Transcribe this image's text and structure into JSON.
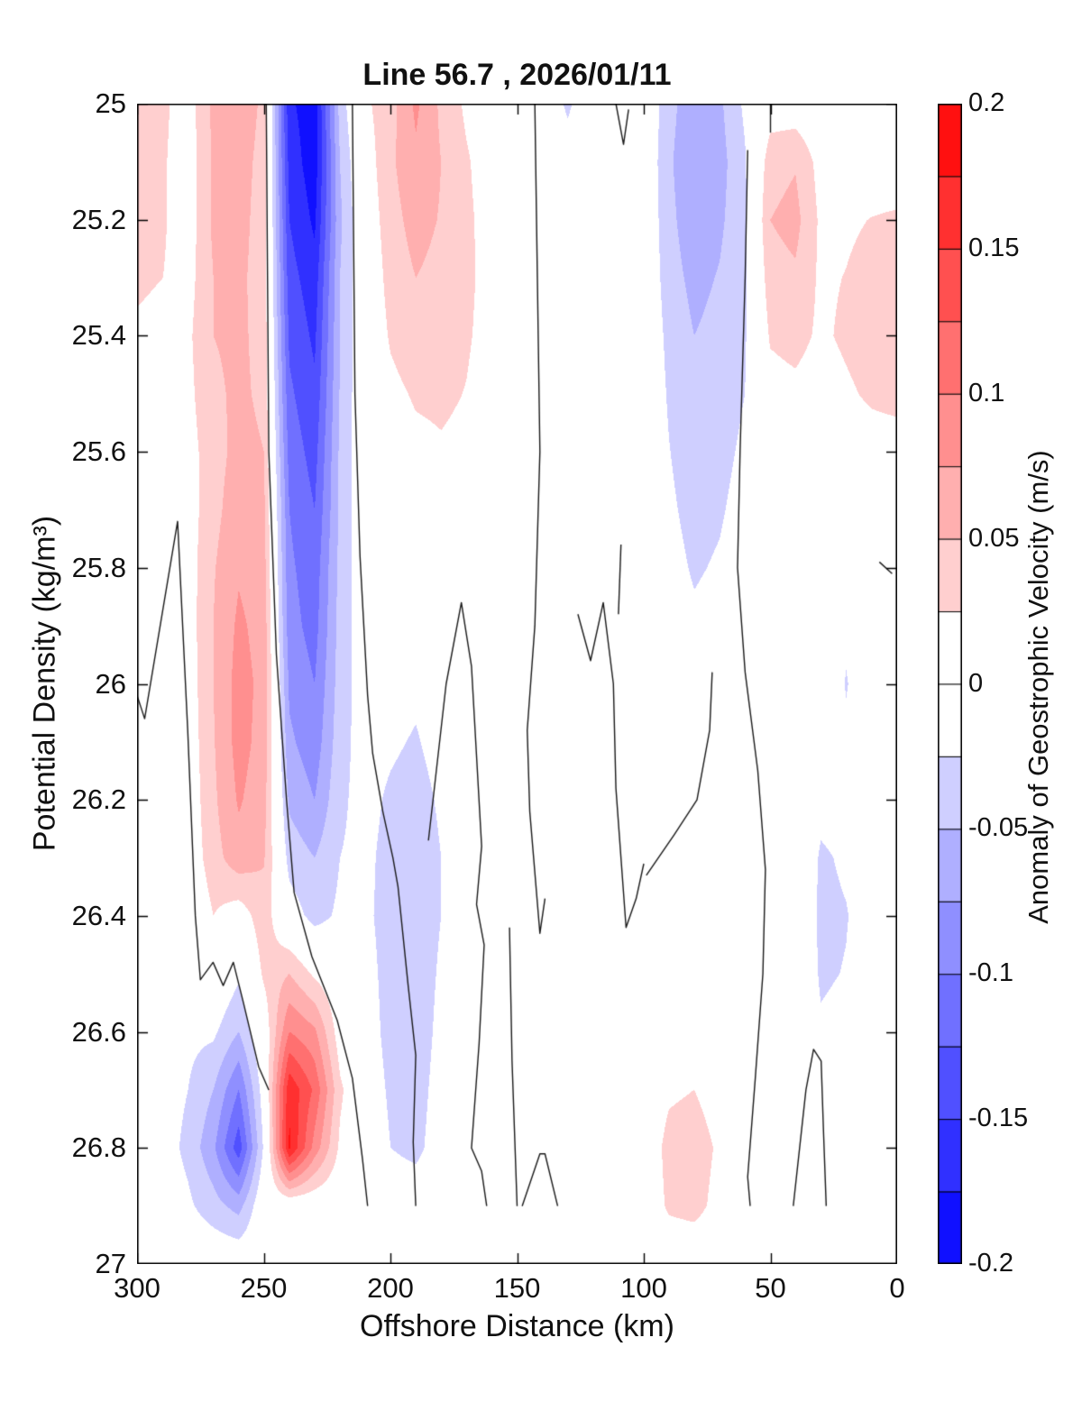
{
  "title": "Line 56.7 , 2026/01/11",
  "figure": {
    "background_color": "#FFFFFF",
    "frame_color": "#000000",
    "contour_line_color": "#1A1A1A",
    "text_color": "#111111"
  },
  "axes": {
    "x": {
      "label": "Offshore Distance (km)",
      "min": 0,
      "max": 300,
      "reversed": true,
      "ticks": [
        {
          "value": 300,
          "label": "300"
        },
        {
          "value": 250,
          "label": "250"
        },
        {
          "value": 200,
          "label": "200"
        },
        {
          "value": 150,
          "label": "150"
        },
        {
          "value": 100,
          "label": "100"
        },
        {
          "value": 50,
          "label": "50"
        },
        {
          "value": 0,
          "label": "0"
        }
      ]
    },
    "y": {
      "label": "Potential Density (kg/m³)",
      "min": 25,
      "max": 27,
      "increases_downward": true,
      "ticks": [
        {
          "value": 25,
          "label": "25"
        },
        {
          "value": 25.2,
          "label": "25.2"
        },
        {
          "value": 25.4,
          "label": "25.4"
        },
        {
          "value": 25.6,
          "label": "25.6"
        },
        {
          "value": 25.8,
          "label": "25.8"
        },
        {
          "value": 26,
          "label": "26"
        },
        {
          "value": 26.2,
          "label": "26.2"
        },
        {
          "value": 26.4,
          "label": "26.4"
        },
        {
          "value": 26.6,
          "label": "26.6"
        },
        {
          "value": 26.8,
          "label": "26.8"
        },
        {
          "value": 27,
          "label": "27"
        }
      ]
    }
  },
  "colorbar": {
    "label": "Anomaly of Geostrophic Velocity (m/s)",
    "min": -0.2,
    "max": 0.2,
    "n_bins": 16,
    "bin_colors": [
      "#1010FF",
      "#3030FF",
      "#5050FF",
      "#7070FF",
      "#8F8FFF",
      "#AFAFFF",
      "#CFCFFF",
      "#FFFFFF",
      "#FFFFFF",
      "#FFCFCF",
      "#FFAFAF",
      "#FF8F8F",
      "#FF7070",
      "#FF5050",
      "#FF3030",
      "#FF1010"
    ],
    "ticks": [
      {
        "value": 0.2,
        "label": "0.2"
      },
      {
        "value": 0.15,
        "label": "0.15"
      },
      {
        "value": 0.1,
        "label": "0.1"
      },
      {
        "value": 0.05,
        "label": "0.05"
      },
      {
        "value": 0,
        "label": "0"
      },
      {
        "value": -0.05,
        "label": "-0.05"
      },
      {
        "value": -0.1,
        "label": "-0.1"
      },
      {
        "value": -0.15,
        "label": "-0.15"
      },
      {
        "value": -0.2,
        "label": "-0.2"
      }
    ]
  },
  "chart_data": {
    "type": "filled_contour",
    "title": "Line 56.7 , 2026/01/11",
    "xlabel": "Offshore Distance (km)",
    "ylabel": "Potential Density (kg/m³)",
    "zlabel": "Anomaly of Geostrophic Velocity (m/s)",
    "x_km": [
      300,
      290,
      280,
      270,
      260,
      250,
      240,
      230,
      220,
      210,
      200,
      190,
      180,
      170,
      160,
      150,
      140,
      130,
      120,
      110,
      100,
      90,
      80,
      70,
      60,
      50,
      40,
      30,
      20,
      10,
      0
    ],
    "sigma": [
      25.0,
      25.1,
      25.2,
      25.3,
      25.4,
      25.5,
      25.6,
      25.7,
      25.8,
      25.9,
      26.0,
      26.1,
      26.2,
      26.3,
      26.4,
      26.5,
      26.6,
      26.7,
      26.8,
      26.9,
      27.0
    ],
    "contour_interval": 0.025,
    "values": [
      [
        0.04,
        0.03,
        0.012,
        0.055,
        0.065,
        0.045,
        -0.17,
        -0.19,
        -0.04,
        0.02,
        0.04,
        0.08,
        0.045,
        0.02,
        0.006,
        0,
        0,
        -0.03,
        0,
        0,
        0,
        -0.04,
        -0.07,
        -0.055,
        -0.02,
        0.01,
        0.008,
        0,
        0,
        0,
        0
      ],
      [
        0.04,
        0.028,
        0.01,
        0.055,
        0.06,
        0.042,
        -0.16,
        -0.19,
        -0.05,
        0.01,
        0.045,
        0.07,
        0.05,
        0.028,
        0.01,
        0,
        0,
        -0.01,
        0,
        0,
        0,
        -0.045,
        -0.075,
        -0.06,
        -0.028,
        0.04,
        0.048,
        0.015,
        0.01,
        0.006,
        0.002
      ],
      [
        0.04,
        0.028,
        0.01,
        0.055,
        0.058,
        0.04,
        -0.15,
        -0.18,
        -0.055,
        0.005,
        0.04,
        0.06,
        0.048,
        0.03,
        0.014,
        0,
        0,
        0,
        0,
        0,
        0,
        -0.042,
        -0.068,
        -0.055,
        -0.03,
        0.05,
        0.058,
        0.02,
        0.02,
        0.026,
        0.03
      ],
      [
        0.03,
        0.025,
        0.015,
        0.05,
        0.055,
        0.04,
        -0.14,
        -0.165,
        -0.05,
        0,
        0.035,
        0.05,
        0.042,
        0.03,
        0.016,
        0,
        0,
        0,
        0,
        0,
        0,
        -0.038,
        -0.058,
        -0.048,
        -0.03,
        0.04,
        0.046,
        0.02,
        0.026,
        0.036,
        0.042
      ],
      [
        0.02,
        0.015,
        0.02,
        0.05,
        0.055,
        0.042,
        -0.13,
        -0.155,
        -0.05,
        0,
        0.028,
        0.04,
        0.036,
        0.028,
        0.015,
        0,
        0,
        0,
        0,
        0,
        0,
        -0.032,
        -0.05,
        -0.042,
        -0.028,
        0.028,
        0.034,
        0.02,
        0.03,
        0.04,
        0.046
      ],
      [
        0.01,
        0.008,
        0.018,
        0.045,
        0.055,
        0.045,
        -0.12,
        -0.145,
        -0.048,
        0,
        0.018,
        0.028,
        0.03,
        0.024,
        0.012,
        0,
        0,
        0,
        0,
        0,
        0,
        -0.028,
        -0.045,
        -0.038,
        -0.025,
        0.014,
        0.018,
        0.01,
        0.02,
        0.03,
        0.036
      ],
      [
        0.008,
        0.008,
        0.014,
        0.04,
        0.058,
        0.05,
        -0.11,
        -0.135,
        -0.045,
        0,
        0.01,
        0.018,
        0.022,
        0.018,
        0.008,
        0,
        0,
        0,
        0,
        0,
        0,
        -0.024,
        -0.04,
        -0.033,
        -0.02,
        0.004,
        0.004,
        0,
        0.008,
        0.01,
        0.008
      ],
      [
        0.008,
        0.01,
        0.012,
        0.042,
        0.065,
        0.055,
        -0.1,
        -0.125,
        -0.045,
        -0.002,
        0.004,
        0.008,
        0.012,
        0.01,
        0.004,
        0,
        0,
        0,
        0,
        0,
        0,
        -0.02,
        -0.034,
        -0.028,
        -0.015,
        0.014,
        0.008,
        0,
        -0.004,
        -0.002,
        0
      ],
      [
        0.008,
        0.012,
        0.012,
        0.048,
        0.072,
        0.06,
        -0.095,
        -0.115,
        -0.042,
        -0.005,
        0,
        0,
        0.004,
        0.004,
        0,
        0,
        0,
        0,
        0,
        0,
        0,
        -0.015,
        -0.028,
        -0.022,
        -0.01,
        0.02,
        0.012,
        0,
        -0.012,
        -0.006,
        -0.002
      ],
      [
        0.006,
        0.012,
        0.012,
        0.05,
        0.08,
        0.065,
        -0.09,
        -0.11,
        -0.04,
        -0.008,
        -0.005,
        -0.008,
        -0.002,
        0,
        0,
        0,
        0,
        0,
        0,
        0,
        0,
        -0.01,
        -0.02,
        -0.015,
        -0.006,
        0.01,
        0.006,
        -0.005,
        -0.022,
        -0.012,
        -0.006
      ],
      [
        0.002,
        0.005,
        0.01,
        0.05,
        0.085,
        0.068,
        -0.08,
        -0.1,
        -0.038,
        -0.01,
        -0.012,
        -0.018,
        -0.006,
        -0.002,
        0,
        0,
        0,
        0,
        0,
        0,
        0,
        -0.005,
        -0.012,
        -0.008,
        -0.002,
        0,
        0,
        -0.008,
        -0.026,
        -0.014,
        -0.008
      ],
      [
        -0.004,
        -0.003,
        0.008,
        0.048,
        0.085,
        0.065,
        -0.07,
        -0.09,
        -0.035,
        -0.012,
        -0.02,
        -0.028,
        -0.012,
        -0.004,
        0,
        0,
        0,
        0,
        0,
        0,
        0,
        0,
        -0.005,
        -0.002,
        0,
        0,
        0,
        -0.012,
        -0.022,
        -0.01,
        -0.006
      ],
      [
        -0.005,
        -0.004,
        0.006,
        0.045,
        0.078,
        0.06,
        -0.055,
        -0.075,
        -0.03,
        -0.015,
        -0.03,
        -0.038,
        -0.02,
        -0.006,
        0,
        0,
        0,
        0,
        0,
        0,
        0,
        0,
        0,
        0,
        0,
        0,
        0,
        -0.018,
        -0.016,
        -0.008,
        -0.004
      ],
      [
        -0.005,
        -0.005,
        0.004,
        0.04,
        0.065,
        0.052,
        -0.035,
        -0.05,
        -0.025,
        -0.018,
        -0.035,
        -0.045,
        -0.025,
        -0.008,
        0,
        0,
        0,
        0,
        0,
        0,
        0,
        0,
        0,
        0,
        0,
        0,
        0,
        -0.028,
        -0.022,
        -0.012,
        -0.008
      ],
      [
        -0.008,
        -0.006,
        -0.005,
        0.025,
        0.01,
        0.04,
        -0.01,
        -0.035,
        -0.02,
        -0.02,
        -0.035,
        -0.045,
        -0.025,
        -0.008,
        0,
        0,
        0,
        0,
        0,
        0,
        0,
        0,
        0,
        0,
        0,
        0,
        0,
        -0.03,
        -0.026,
        -0.016,
        -0.012
      ],
      [
        -0.01,
        -0.01,
        -0.012,
        0.005,
        -0.02,
        0.03,
        0.05,
        0.02,
        0,
        -0.015,
        -0.035,
        -0.045,
        -0.02,
        -0.005,
        0,
        0,
        0,
        0,
        0,
        0,
        0,
        0,
        0,
        0,
        0,
        0,
        0,
        -0.028,
        -0.024,
        -0.012,
        -0.008
      ],
      [
        -0.01,
        -0.012,
        -0.018,
        -0.02,
        -0.05,
        0.005,
        0.1,
        0.08,
        0.01,
        -0.01,
        -0.035,
        -0.045,
        -0.015,
        -0.003,
        0,
        0,
        0,
        0,
        0,
        0,
        0,
        0.005,
        0.005,
        0,
        0,
        0,
        -0.008,
        -0.022,
        -0.018,
        -0.008,
        -0.004
      ],
      [
        -0.01,
        -0.012,
        -0.025,
        -0.05,
        -0.1,
        -0.01,
        0.17,
        0.12,
        0.03,
        -0.005,
        -0.03,
        -0.04,
        -0.01,
        0,
        0,
        0,
        0,
        0,
        0,
        0,
        0,
        0.02,
        0.025,
        0.01,
        0,
        0,
        -0.012,
        -0.012,
        -0.01,
        -0.004,
        0
      ],
      [
        -0.01,
        -0.012,
        -0.032,
        -0.07,
        -0.14,
        -0.02,
        0.18,
        0.09,
        0.02,
        0,
        -0.025,
        -0.035,
        -0.005,
        0,
        0,
        0,
        0,
        0,
        0,
        0,
        0,
        0.035,
        0.04,
        0.02,
        0,
        0,
        -0.01,
        -0.006,
        -0.004,
        0,
        0
      ],
      [
        -0.005,
        -0.008,
        -0.02,
        -0.04,
        -0.06,
        0,
        0,
        0,
        0,
        0,
        0,
        0,
        0,
        0,
        0,
        0,
        0,
        0,
        0,
        0,
        0,
        0.03,
        0.035,
        0.015,
        0,
        0,
        -0.005,
        0,
        0,
        0,
        0
      ],
      [
        0,
        0,
        0,
        0,
        0,
        0,
        0,
        0,
        0,
        0,
        0,
        0,
        0,
        0,
        0,
        0,
        0,
        0,
        0,
        0,
        0,
        0,
        0,
        0,
        0,
        0,
        0,
        0,
        0,
        0,
        0
      ]
    ],
    "zero_contours": [
      [
        [
          300,
          26.02
        ],
        [
          297,
          26.06
        ],
        [
          284,
          25.72
        ],
        [
          280,
          26.08
        ],
        [
          277,
          26.4
        ],
        [
          275,
          26.51
        ],
        [
          270,
          26.48
        ],
        [
          266,
          26.52
        ],
        [
          262,
          26.48
        ],
        [
          258,
          26.55
        ],
        [
          252,
          26.66
        ],
        [
          248,
          26.7
        ]
      ],
      [
        [
          249,
          25.0
        ],
        [
          248,
          25.6
        ],
        [
          245,
          25.95
        ],
        [
          241,
          26.2
        ],
        [
          238,
          26.36
        ],
        [
          231,
          26.47
        ],
        [
          221,
          26.58
        ],
        [
          215,
          26.68
        ],
        [
          211,
          26.82
        ],
        [
          209,
          26.9
        ]
      ],
      [
        [
          215,
          25.0
        ],
        [
          214,
          25.5
        ],
        [
          212,
          25.78
        ],
        [
          209,
          26.02
        ],
        [
          207,
          26.12
        ],
        [
          203,
          26.22
        ],
        [
          199,
          26.3
        ],
        [
          197,
          26.35
        ],
        [
          193,
          26.52
        ],
        [
          190,
          26.64
        ],
        [
          191,
          26.79
        ],
        [
          190,
          26.9
        ]
      ],
      [
        [
          185,
          26.27
        ],
        [
          178,
          26.0
        ],
        [
          172,
          25.86
        ],
        [
          168,
          25.97
        ],
        [
          164,
          26.28
        ],
        [
          166,
          26.38
        ],
        [
          163,
          26.45
        ],
        [
          165,
          26.62
        ],
        [
          168,
          26.8
        ],
        [
          164,
          26.84
        ],
        [
          162,
          26.9
        ]
      ],
      [
        [
          143,
          25.0
        ],
        [
          142,
          25.3
        ],
        [
          141,
          25.6
        ],
        [
          143,
          25.9
        ],
        [
          146,
          26.08
        ],
        [
          145,
          26.22
        ],
        [
          141,
          26.43
        ],
        [
          139,
          26.37
        ]
      ],
      [
        [
          126,
          25.88
        ],
        [
          121,
          25.96
        ],
        [
          116,
          25.86
        ],
        [
          112,
          26.0
        ],
        [
          111,
          26.18
        ],
        [
          107,
          26.42
        ],
        [
          103,
          26.37
        ],
        [
          100,
          26.31
        ]
      ],
      [
        [
          99,
          26.33
        ],
        [
          88,
          26.26
        ],
        [
          79,
          26.2
        ],
        [
          74,
          26.08
        ],
        [
          73,
          25.98
        ]
      ],
      [
        [
          59,
          25.08
        ],
        [
          60,
          25.3
        ],
        [
          62,
          25.6
        ],
        [
          63,
          25.8
        ],
        [
          60,
          25.98
        ],
        [
          55,
          26.15
        ],
        [
          52,
          26.32
        ],
        [
          53,
          26.5
        ],
        [
          56,
          26.68
        ],
        [
          59,
          26.85
        ],
        [
          58,
          26.9
        ]
      ],
      [
        [
          41,
          26.9
        ],
        [
          36,
          26.7
        ],
        [
          33,
          26.63
        ],
        [
          30,
          26.65
        ],
        [
          29,
          26.78
        ],
        [
          28,
          26.9
        ]
      ],
      [
        [
          111,
          25.0
        ],
        [
          108,
          25.07
        ],
        [
          106,
          25.01
        ]
      ],
      [
        [
          109,
          25.76
        ],
        [
          110,
          25.88
        ]
      ],
      [
        [
          153,
          26.42
        ],
        [
          152,
          26.65
        ],
        [
          150,
          26.9
        ]
      ],
      [
        [
          148,
          26.9
        ],
        [
          141,
          26.81
        ],
        [
          139,
          26.81
        ],
        [
          134,
          26.9
        ]
      ],
      [
        [
          7,
          25.79
        ],
        [
          2,
          25.81
        ]
      ],
      [
        [
          50,
          25.0
        ],
        [
          50,
          25.05
        ]
      ]
    ]
  }
}
